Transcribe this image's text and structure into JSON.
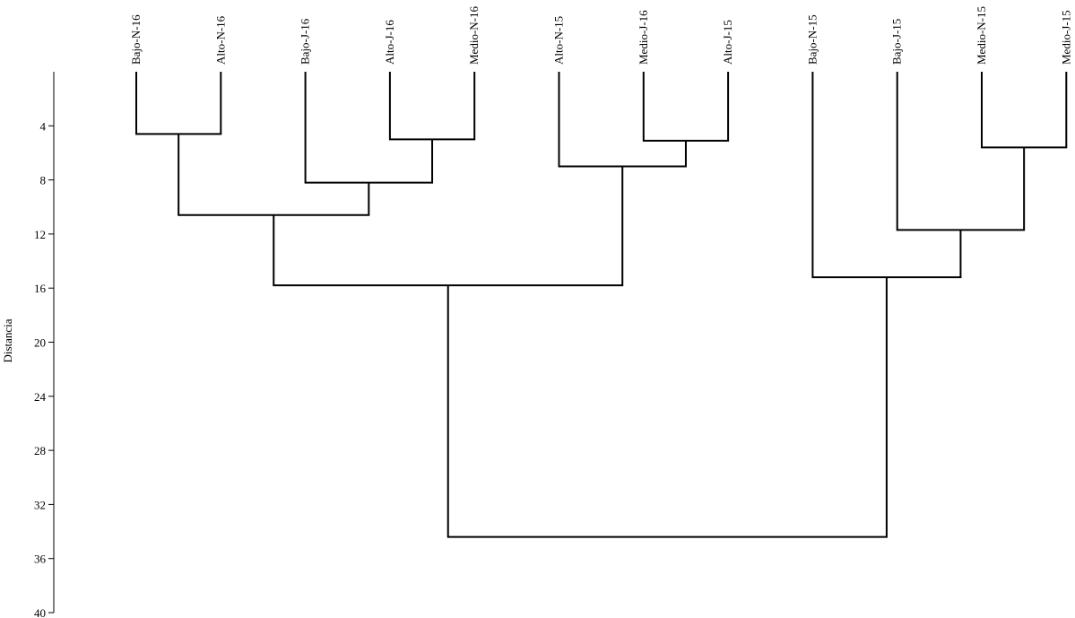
{
  "chart_data": {
    "type": "dendrogram",
    "ylabel": "Distancia",
    "ylim": [
      0,
      40
    ],
    "yticks": [
      4,
      8,
      12,
      16,
      20,
      24,
      28,
      32,
      36,
      40
    ],
    "leaves": [
      "Bajo-N-16",
      "Alto-N-16",
      "Bajo-J-16",
      "Alto-J-16",
      "Medio-N-16",
      "Alto-N-15",
      "Medio-J-16",
      "Alto-J-15",
      "Bajo-N-15",
      "Bajo-J-15",
      "Medio-N-15",
      "Medio-J-15"
    ],
    "merges": [
      {
        "left": "Bajo-N-16",
        "right": "Alto-N-16",
        "height": 4.6,
        "id": "c1"
      },
      {
        "left": "Alto-J-16",
        "right": "Medio-N-16",
        "height": 5.0,
        "id": "c2"
      },
      {
        "left": "Bajo-J-16",
        "right": "c2",
        "height": 8.2,
        "id": "c3"
      },
      {
        "left": "c1",
        "right": "c3",
        "height": 10.6,
        "id": "c4"
      },
      {
        "left": "Medio-J-16",
        "right": "Alto-J-15",
        "height": 5.1,
        "id": "c5"
      },
      {
        "left": "Alto-N-15",
        "right": "c5",
        "height": 7.0,
        "id": "c6"
      },
      {
        "left": "c4",
        "right": "c6",
        "height": 15.8,
        "id": "c7"
      },
      {
        "left": "Medio-N-15",
        "right": "Medio-J-15",
        "height": 5.6,
        "id": "c8"
      },
      {
        "left": "Bajo-J-15",
        "right": "c8",
        "height": 11.7,
        "id": "c9"
      },
      {
        "left": "Bajo-N-15",
        "right": "c9",
        "height": 15.2,
        "id": "c10"
      },
      {
        "left": "c7",
        "right": "c10",
        "height": 34.4,
        "id": "c11"
      }
    ]
  }
}
